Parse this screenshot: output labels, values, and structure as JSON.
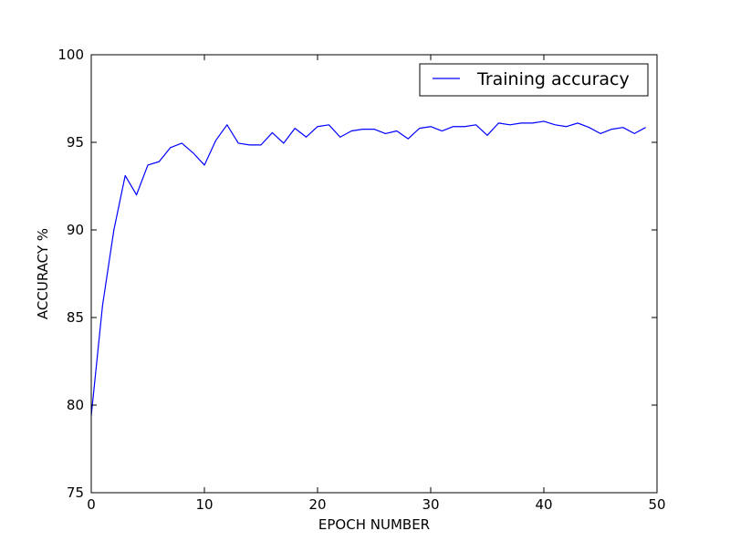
{
  "chart_data": {
    "type": "line",
    "xlabel": "EPOCH NUMBER",
    "ylabel": "ACCURACY %",
    "xlim": [
      0,
      50
    ],
    "ylim": [
      75,
      100
    ],
    "xticks": [
      "0",
      "10",
      "20",
      "30",
      "40",
      "50"
    ],
    "yticks": [
      "75",
      "80",
      "85",
      "90",
      "95",
      "100"
    ],
    "grid": false,
    "legend_position": "top-right",
    "series": [
      {
        "name": "Training accuracy",
        "color": "#0000ff",
        "x": [
          0,
          1,
          2,
          3,
          4,
          5,
          6,
          7,
          8,
          9,
          10,
          11,
          12,
          13,
          14,
          15,
          16,
          17,
          18,
          19,
          20,
          21,
          22,
          23,
          24,
          25,
          26,
          27,
          28,
          29,
          30,
          31,
          32,
          33,
          34,
          35,
          36,
          37,
          38,
          39,
          40,
          41,
          42,
          43,
          44,
          45,
          46,
          47,
          48,
          49
        ],
        "y": [
          79.4,
          85.7,
          90.0,
          93.1,
          92.0,
          93.7,
          93.9,
          94.7,
          94.95,
          94.4,
          93.7,
          95.1,
          96.0,
          94.95,
          94.85,
          94.85,
          95.55,
          94.95,
          95.8,
          95.3,
          95.9,
          96.0,
          95.3,
          95.65,
          95.75,
          95.75,
          95.5,
          95.65,
          95.2,
          95.8,
          95.9,
          95.65,
          95.9,
          95.9,
          96.0,
          95.4,
          96.1,
          96.0,
          96.1,
          96.1,
          96.2,
          96.0,
          95.9,
          96.1,
          95.85,
          95.5,
          95.75,
          95.85,
          95.5,
          95.85
        ]
      }
    ]
  }
}
